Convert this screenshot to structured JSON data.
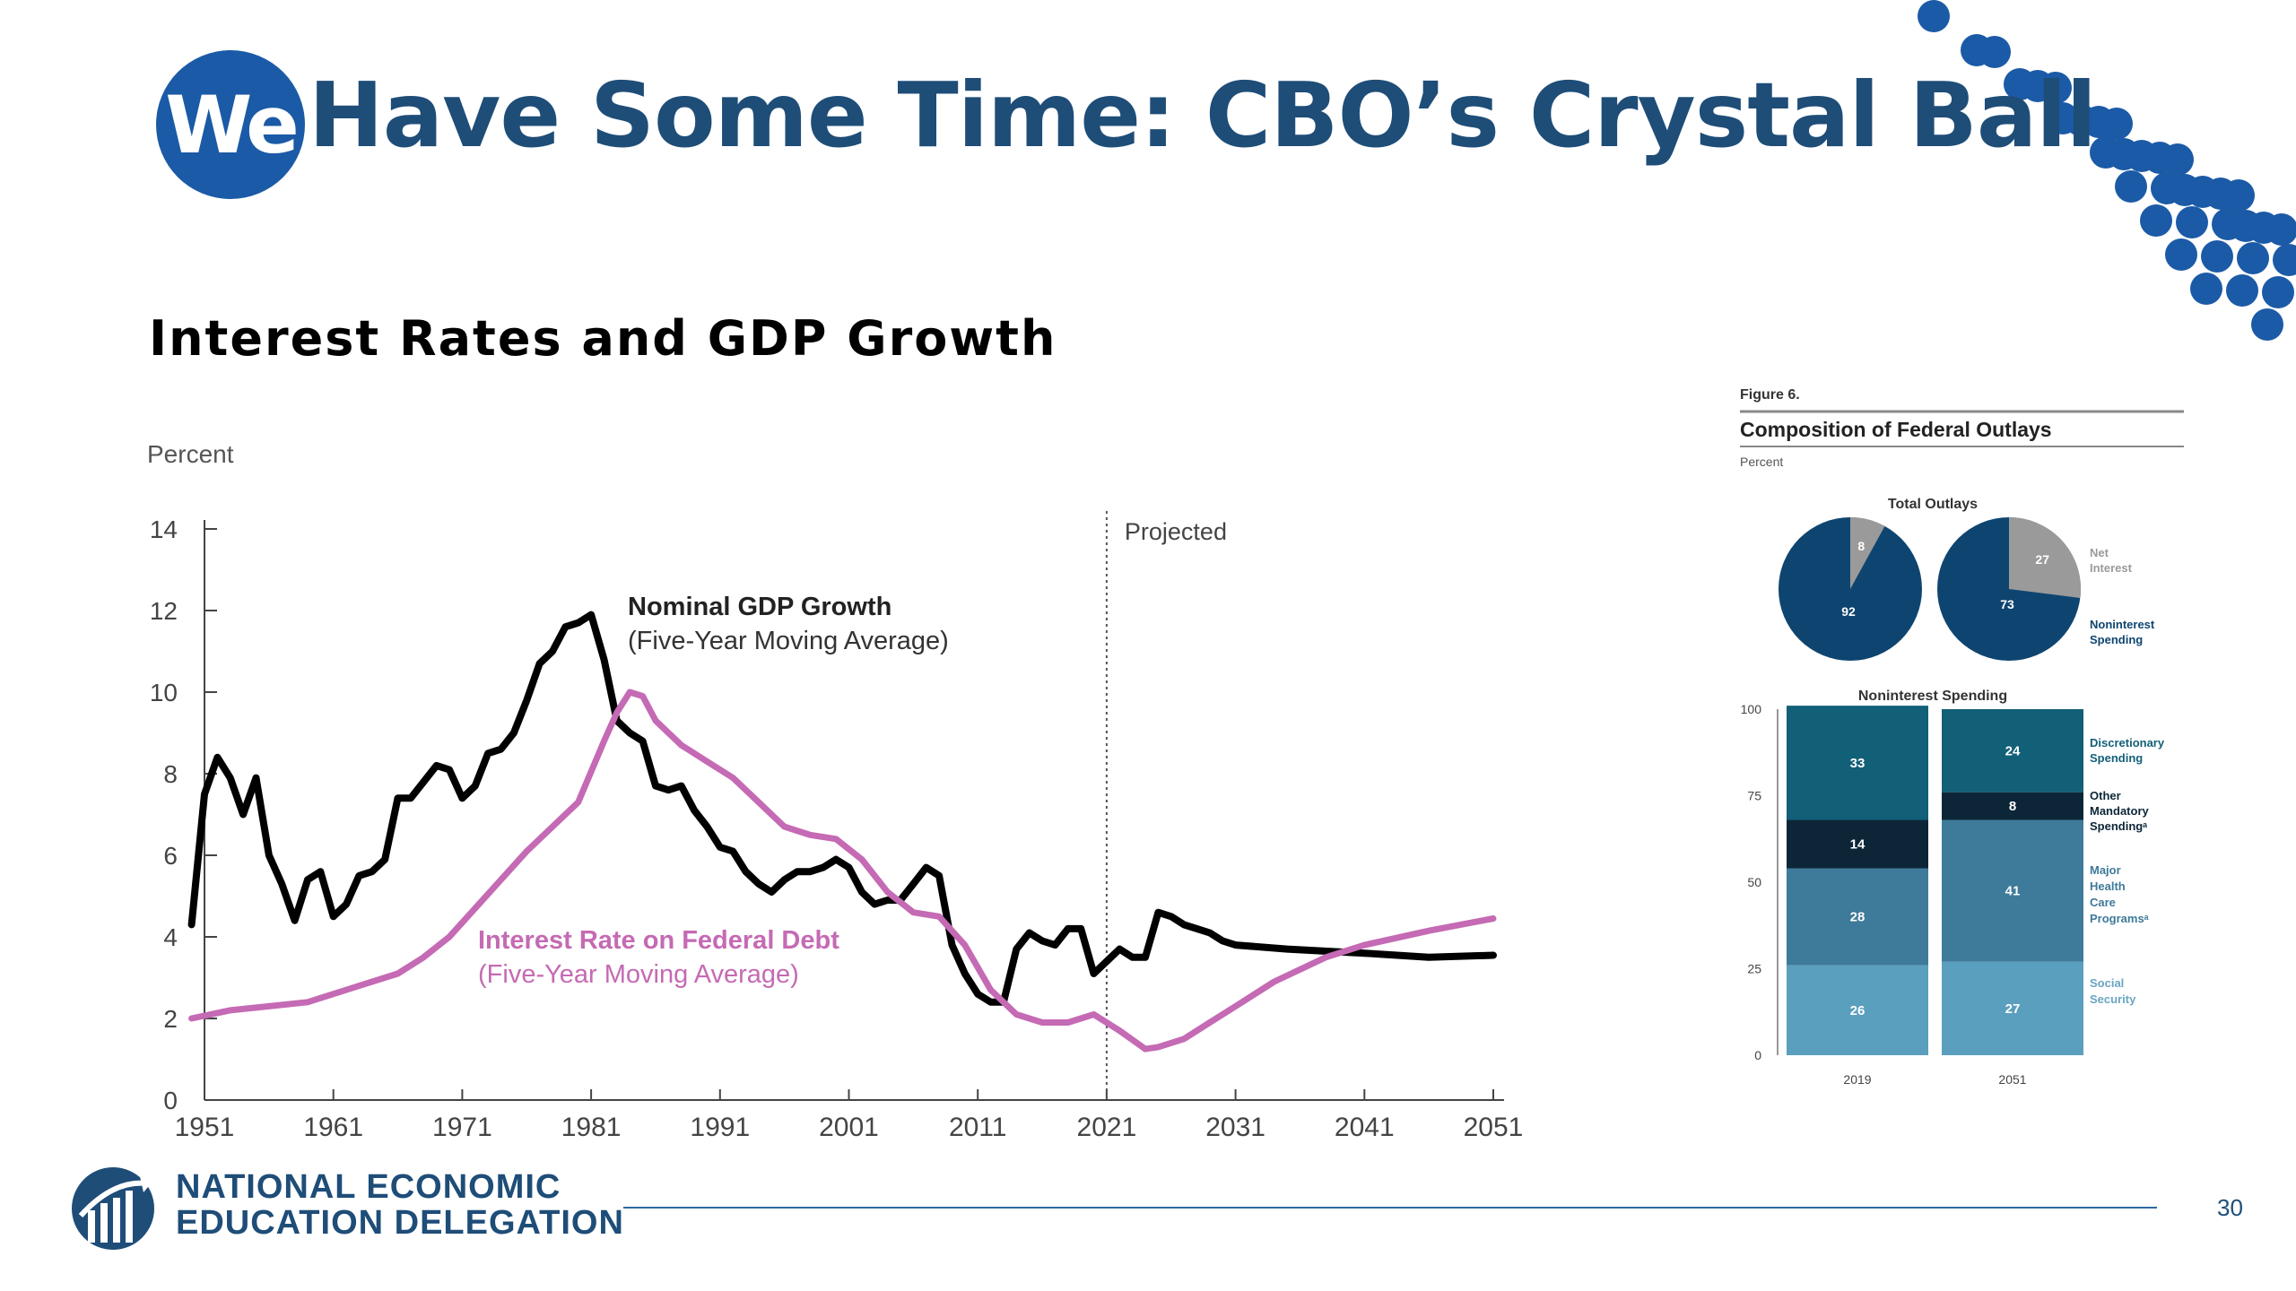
{
  "slide": {
    "badge": "We",
    "title": "Have Some Time: CBO’s Crystal Ball",
    "page_number": "30",
    "accent_color": "#1e4d78"
  },
  "footer": {
    "org_line1": "NATIONAL ECONOMIC",
    "org_line2": "EDUCATION DELEGATION"
  },
  "chart_data": [
    {
      "type": "line",
      "title": "Interest Rates and GDP Growth",
      "ylabel": "Percent",
      "ylim": [
        0,
        14
      ],
      "yticks": [
        0,
        2,
        4,
        6,
        8,
        10,
        12,
        14
      ],
      "xlim": [
        1951,
        2051
      ],
      "xticks": [
        1951,
        1961,
        1971,
        1981,
        1991,
        2001,
        2011,
        2021,
        2031,
        2041,
        2051
      ],
      "projection_marker": {
        "x": 2021,
        "label": "Projected"
      },
      "series": [
        {
          "name": "Nominal GDP Growth",
          "subtitle": "(Five-Year Moving Average)",
          "color": "#000000",
          "x": [
            1950,
            1951,
            1952,
            1953,
            1954,
            1955,
            1956,
            1957,
            1958,
            1959,
            1960,
            1961,
            1962,
            1963,
            1964,
            1965,
            1966,
            1967,
            1968,
            1969,
            1970,
            1971,
            1972,
            1973,
            1974,
            1975,
            1976,
            1977,
            1978,
            1979,
            1980,
            1981,
            1982,
            1983,
            1984,
            1985,
            1986,
            1987,
            1988,
            1989,
            1990,
            1991,
            1992,
            1993,
            1994,
            1995,
            1996,
            1997,
            1998,
            1999,
            2000,
            2001,
            2002,
            2003,
            2004,
            2005,
            2006,
            2007,
            2008,
            2009,
            2010,
            2011,
            2012,
            2013,
            2014,
            2015,
            2016,
            2017,
            2018,
            2019,
            2020,
            2021,
            2022,
            2023,
            2024,
            2025,
            2026,
            2027,
            2028,
            2029,
            2030,
            2031,
            2035,
            2041,
            2046,
            2051
          ],
          "y": [
            4.3,
            7.5,
            8.4,
            7.9,
            7.0,
            7.9,
            6.0,
            5.3,
            4.4,
            5.4,
            5.6,
            4.5,
            4.8,
            5.5,
            5.6,
            5.9,
            7.4,
            7.4,
            7.8,
            8.2,
            8.1,
            7.4,
            7.7,
            8.5,
            8.6,
            9.0,
            9.8,
            10.7,
            11.0,
            11.6,
            11.7,
            11.9,
            10.8,
            9.3,
            9.0,
            8.8,
            7.7,
            7.6,
            7.7,
            7.1,
            6.7,
            6.2,
            6.1,
            5.6,
            5.3,
            5.1,
            5.4,
            5.6,
            5.6,
            5.7,
            5.9,
            5.7,
            5.1,
            4.8,
            4.9,
            4.9,
            5.3,
            5.7,
            5.5,
            3.8,
            3.1,
            2.6,
            2.4,
            2.4,
            3.7,
            4.1,
            3.9,
            3.8,
            4.2,
            4.2,
            3.1,
            3.4,
            3.7,
            3.5,
            3.5,
            4.6,
            4.5,
            4.3,
            4.2,
            4.1,
            3.9,
            3.8,
            3.7,
            3.6,
            3.5,
            3.55
          ]
        },
        {
          "name": "Interest Rate on Federal Debt",
          "subtitle": "(Five-Year Moving Average)",
          "color": "#c56ab4",
          "x": [
            1950,
            1953,
            1956,
            1959,
            1961,
            1963,
            1966,
            1968,
            1970,
            1972,
            1974,
            1976,
            1978,
            1980,
            1982,
            1983,
            1984,
            1985,
            1986,
            1988,
            1990,
            1992,
            1994,
            1996,
            1998,
            2000,
            2002,
            2004,
            2006,
            2008,
            2010,
            2012,
            2014,
            2016,
            2018,
            2020,
            2022,
            2024,
            2025,
            2027,
            2029,
            2031,
            2034,
            2038,
            2041,
            2046,
            2051
          ],
          "y": [
            2.0,
            2.2,
            2.3,
            2.4,
            2.6,
            2.8,
            3.1,
            3.5,
            4.0,
            4.7,
            5.4,
            6.1,
            6.7,
            7.3,
            8.8,
            9.5,
            10.0,
            9.9,
            9.3,
            8.7,
            8.3,
            7.9,
            7.3,
            6.7,
            6.5,
            6.4,
            5.9,
            5.1,
            4.6,
            4.5,
            3.8,
            2.7,
            2.1,
            1.9,
            1.9,
            2.1,
            1.7,
            1.25,
            1.3,
            1.5,
            1.9,
            2.3,
            2.9,
            3.5,
            3.8,
            4.15,
            4.45
          ]
        }
      ]
    },
    {
      "type": "pie",
      "figure_label": "Figure 6.",
      "title": "Composition of Federal Outlays",
      "ylabel": "Percent",
      "subtitle": "Total Outlays",
      "categories": [
        "2019",
        "2051"
      ],
      "series": [
        {
          "name": "Net Interest",
          "values": [
            8,
            27
          ],
          "color": "#9a9a9a"
        },
        {
          "name": "Noninterest Spending",
          "values": [
            92,
            73
          ],
          "color": "#0e4570"
        }
      ]
    },
    {
      "type": "bar",
      "title": "Noninterest Spending",
      "categories": [
        "2019",
        "2051"
      ],
      "ylim": [
        0,
        100
      ],
      "yticks": [
        0,
        25,
        50,
        75,
        100
      ],
      "series": [
        {
          "name": "Social Security",
          "values": [
            26,
            27
          ],
          "color": "#5b9fbf"
        },
        {
          "name": "Major Health Care Programsᵃ",
          "label_lines": [
            "Major",
            "Health",
            "Care",
            "Programsᵃ"
          ],
          "values": [
            28,
            41
          ],
          "color": "#3e7a99"
        },
        {
          "name": "Other Mandatory Spendingᵃ",
          "label_lines": [
            "Other",
            "Mandatory",
            "Spendingᵃ"
          ],
          "values": [
            14,
            8
          ],
          "color": "#0c2638"
        },
        {
          "name": "Discretionary Spending",
          "label_lines": [
            "Discretionary",
            "Spending"
          ],
          "values": [
            33,
            24
          ],
          "color": "#125f78"
        }
      ]
    }
  ]
}
